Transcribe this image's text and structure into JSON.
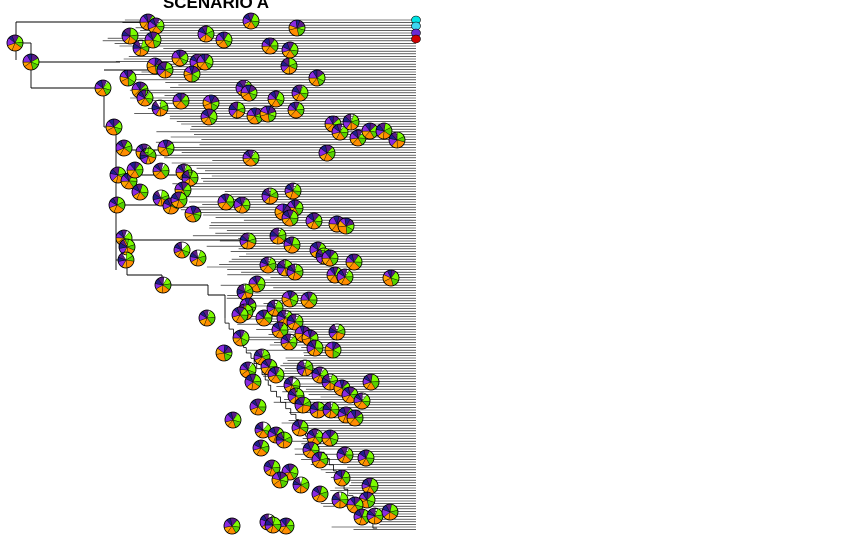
{
  "figure": {
    "title": "SCENARIO A"
  },
  "legend": {
    "colors": [
      "#00E5E5",
      "#3ED7F0",
      "#6A2BD4",
      "#D10000"
    ]
  },
  "pie": {
    "colors": [
      "#7CFC00",
      "#55D000",
      "#FF8C00",
      "#FFA500",
      "#8A2BE2",
      "#1E1E8C",
      "#5A1A8A"
    ],
    "fractions": [
      0.18,
      0.14,
      0.2,
      0.12,
      0.14,
      0.1,
      0.12
    ]
  },
  "colors": {
    "branch": "#000000",
    "background": "#ffffff"
  }
}
